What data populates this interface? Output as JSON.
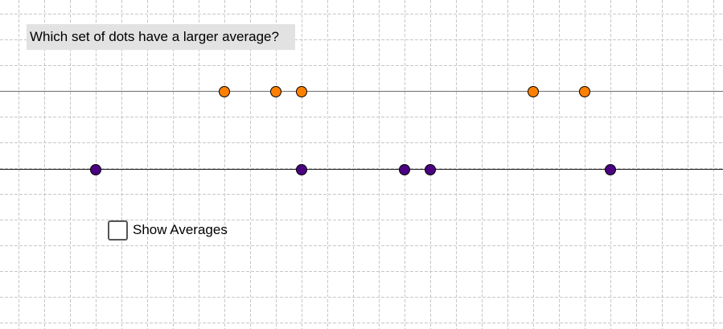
{
  "question": {
    "text": "Which set of dots have a larger average?"
  },
  "colors": {
    "orange_dot": "#ff8000",
    "purple_dot": "#4b0082",
    "grid": "#c8c8c8",
    "question_bg": "#e2e2e2"
  },
  "dot_sets": [
    {
      "name": "orange",
      "positions": [
        8.25,
        10.25,
        11.25,
        20.25,
        22.25
      ]
    },
    {
      "name": "purple",
      "positions": [
        3.25,
        11.25,
        15.25,
        16.25,
        23.25
      ]
    }
  ],
  "controls": {
    "show_averages_label": "Show Averages",
    "show_averages_checked": false
  }
}
